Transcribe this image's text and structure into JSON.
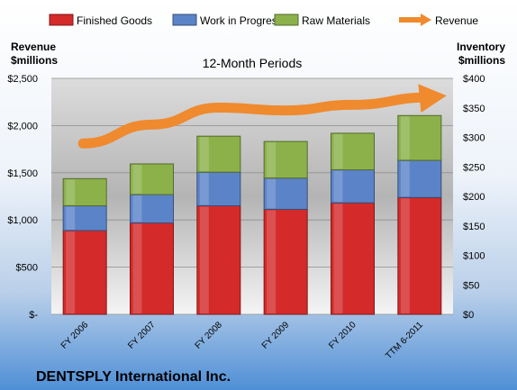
{
  "chart_data": {
    "type": "bar",
    "stacked": true,
    "title": "12-Month Periods",
    "footer_title": "DENTSPLY International Inc.",
    "left_axis_label": [
      "Revenue",
      "$millions"
    ],
    "right_axis_label": [
      "Inventory",
      "$millions"
    ],
    "categories": [
      "FY 2006",
      "FY 2007",
      "FY 2008",
      "FY 2009",
      "FY 2010",
      "TTM 6-2011"
    ],
    "series": [
      {
        "name": "Finished Goods",
        "axis": "right",
        "color": "#d42a2a",
        "values": [
          142,
          155,
          184,
          178,
          189,
          198
        ]
      },
      {
        "name": "Work in Progress",
        "axis": "right",
        "color": "#5b83c8",
        "values": [
          42,
          48,
          57,
          53,
          56,
          63
        ]
      },
      {
        "name": "Raw Materials",
        "axis": "right",
        "color": "#8cb14a",
        "values": [
          46,
          52,
          61,
          62,
          62,
          76
        ]
      },
      {
        "name": "Revenue",
        "axis": "left",
        "type": "line",
        "color": "#ef8a2e",
        "values": [
          1810,
          2010,
          2190,
          2160,
          2220,
          2300
        ]
      }
    ],
    "left_axis": {
      "min": 0,
      "max": 2500,
      "ticks": [
        "$-",
        "$500",
        "$1,000",
        "$1,500",
        "$2,000",
        "$2,500"
      ],
      "tick_values": [
        0,
        500,
        1000,
        1500,
        2000,
        2500
      ]
    },
    "right_axis": {
      "min": 0,
      "max": 400,
      "ticks": [
        "$0",
        "$50",
        "$100",
        "$150",
        "$200",
        "$250",
        "$300",
        "$350",
        "$400"
      ],
      "tick_values": [
        0,
        50,
        100,
        150,
        200,
        250,
        300,
        350,
        400
      ]
    },
    "legend_position": "top",
    "grid": true
  }
}
